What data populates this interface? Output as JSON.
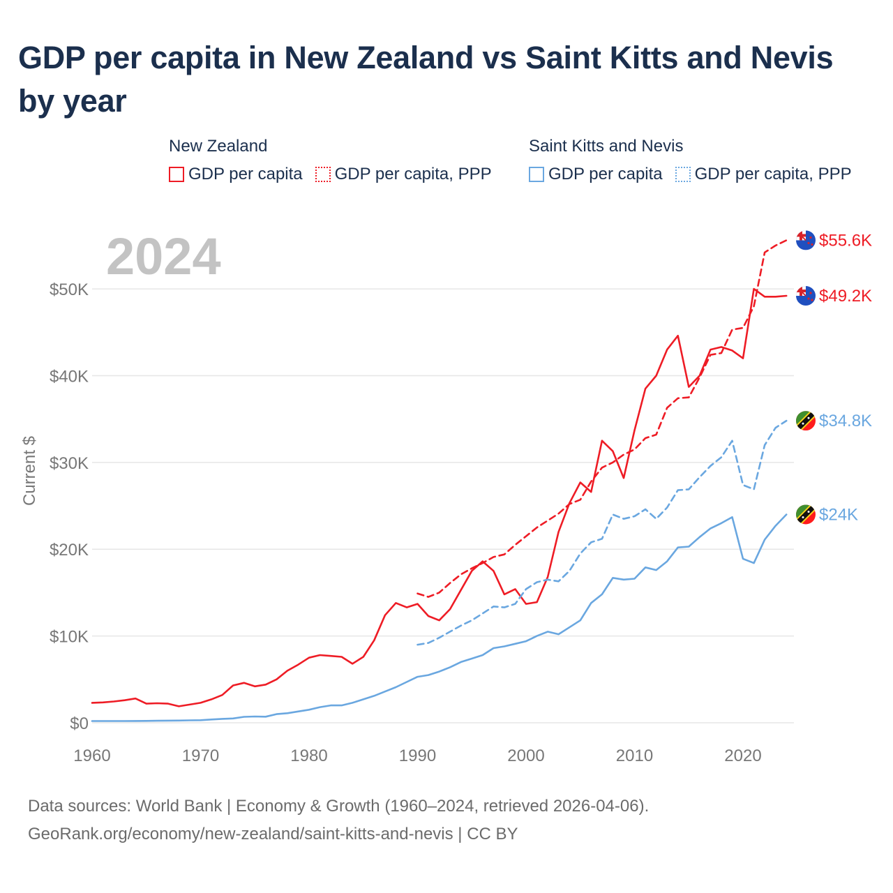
{
  "title": "GDP per capita in New Zealand vs Saint Kitts and Nevis by year",
  "legend": {
    "groups": [
      {
        "name": "New Zealand",
        "color": "#ee1c25",
        "items": [
          {
            "label": "GDP per capita",
            "style": "solid"
          },
          {
            "label": "GDP per capita, PPP",
            "style": "dotted"
          }
        ]
      },
      {
        "name": "Saint Kitts and Nevis",
        "color": "#6aa7e0",
        "items": [
          {
            "label": "GDP per capita",
            "style": "solid"
          },
          {
            "label": "GDP per capita, PPP",
            "style": "dotted"
          }
        ]
      }
    ]
  },
  "footer": {
    "line1": "Data sources: World Bank | Economy & Growth (1960–2024, retrieved 2026-04-06).",
    "line2": "GeoRank.org/economy/new-zealand/saint-kitts-and-nevis | CC BY"
  },
  "chart_data": {
    "type": "line",
    "title": "GDP per capita in New Zealand vs Saint Kitts and Nevis by year",
    "year_label": "2024",
    "xlabel": "",
    "ylabel": "Current $",
    "xlim": [
      1960,
      2024.5
    ],
    "ylim": [
      0,
      57000
    ],
    "x_ticks": [
      1960,
      1970,
      1980,
      1990,
      2000,
      2010,
      2020
    ],
    "y_ticks": [
      0,
      10000,
      20000,
      30000,
      40000,
      50000
    ],
    "y_tick_labels": [
      "$0",
      "$10K",
      "$20K",
      "$30K",
      "$40K",
      "$50K"
    ],
    "grid": true,
    "series": [
      {
        "name": "New Zealand GDP per capita",
        "country": "New Zealand",
        "color": "#ee1c25",
        "dash": "solid",
        "end_label": "$49.2K",
        "flag": "new-zealand",
        "x": [
          1960,
          1961,
          1962,
          1963,
          1964,
          1965,
          1966,
          1967,
          1968,
          1969,
          1970,
          1971,
          1972,
          1973,
          1974,
          1975,
          1976,
          1977,
          1978,
          1979,
          1980,
          1981,
          1982,
          1983,
          1984,
          1985,
          1986,
          1987,
          1988,
          1989,
          1990,
          1991,
          1992,
          1993,
          1994,
          1995,
          1996,
          1997,
          1998,
          1999,
          2000,
          2001,
          2002,
          2003,
          2004,
          2005,
          2006,
          2007,
          2008,
          2009,
          2010,
          2011,
          2012,
          2013,
          2014,
          2015,
          2016,
          2017,
          2018,
          2019,
          2020,
          2021,
          2022,
          2023,
          2024
        ],
        "values": [
          2300,
          2350,
          2450,
          2600,
          2800,
          2200,
          2250,
          2200,
          1900,
          2100,
          2300,
          2700,
          3200,
          4300,
          4600,
          4200,
          4400,
          5000,
          6000,
          6700,
          7500,
          7800,
          7700,
          7600,
          6800,
          7600,
          9500,
          12400,
          13800,
          13300,
          13700,
          12300,
          11800,
          13100,
          15300,
          17500,
          18600,
          17500,
          14800,
          15400,
          13700,
          13900,
          16800,
          22000,
          25300,
          27700,
          26600,
          32500,
          31300,
          28200,
          33700,
          38500,
          40000,
          43000,
          44600,
          38700,
          40000,
          43000,
          43300,
          42900,
          42000,
          50000,
          49100,
          49100,
          49200
        ]
      },
      {
        "name": "New Zealand GDP per capita, PPP",
        "country": "New Zealand",
        "color": "#ee1c25",
        "dash": "dashed",
        "end_label": "$55.6K",
        "flag": "new-zealand",
        "x": [
          1990,
          1991,
          1992,
          1993,
          1994,
          1995,
          1996,
          1997,
          1998,
          1999,
          2000,
          2001,
          2002,
          2003,
          2004,
          2005,
          2006,
          2007,
          2008,
          2009,
          2010,
          2011,
          2012,
          2013,
          2014,
          2015,
          2016,
          2017,
          2018,
          2019,
          2020,
          2021,
          2022,
          2023,
          2024
        ],
        "values": [
          14900,
          14500,
          15000,
          16100,
          17100,
          17800,
          18400,
          19100,
          19400,
          20500,
          21500,
          22500,
          23300,
          24100,
          25200,
          25700,
          27800,
          29400,
          30000,
          30900,
          31500,
          32800,
          33200,
          36300,
          37400,
          37500,
          39800,
          42400,
          42600,
          45300,
          45500,
          48000,
          54200,
          55000,
          55600
        ]
      },
      {
        "name": "Saint Kitts and Nevis GDP per capita",
        "country": "Saint Kitts and Nevis",
        "color": "#6aa7e0",
        "dash": "solid",
        "end_label": "$24K",
        "flag": "saint-kitts-and-nevis",
        "x": [
          1960,
          1961,
          1962,
          1963,
          1964,
          1965,
          1966,
          1967,
          1968,
          1969,
          1970,
          1971,
          1972,
          1973,
          1974,
          1975,
          1976,
          1977,
          1978,
          1979,
          1980,
          1981,
          1982,
          1983,
          1984,
          1985,
          1986,
          1987,
          1988,
          1989,
          1990,
          1991,
          1992,
          1993,
          1994,
          1995,
          1996,
          1997,
          1998,
          1999,
          2000,
          2001,
          2002,
          2003,
          2004,
          2005,
          2006,
          2007,
          2008,
          2009,
          2010,
          2011,
          2012,
          2013,
          2014,
          2015,
          2016,
          2017,
          2018,
          2019,
          2020,
          2021,
          2022,
          2023,
          2024
        ],
        "values": [
          200,
          200,
          200,
          200,
          210,
          220,
          230,
          250,
          260,
          280,
          300,
          380,
          450,
          500,
          680,
          720,
          700,
          1000,
          1100,
          1300,
          1500,
          1800,
          2000,
          2000,
          2300,
          2700,
          3100,
          3600,
          4100,
          4700,
          5300,
          5500,
          5900,
          6400,
          7000,
          7400,
          7800,
          8600,
          8800,
          9100,
          9400,
          10000,
          10500,
          10200,
          11000,
          11800,
          13800,
          14800,
          16700,
          16500,
          16600,
          17900,
          17600,
          18600,
          20200,
          20300,
          21400,
          22400,
          23000,
          23700,
          18900,
          18400,
          21100,
          22700,
          24000
        ]
      },
      {
        "name": "Saint Kitts and Nevis GDP per capita, PPP",
        "country": "Saint Kitts and Nevis",
        "color": "#6aa7e0",
        "dash": "dashed",
        "end_label": "$34.8K",
        "flag": "saint-kitts-and-nevis",
        "x": [
          1990,
          1991,
          1992,
          1993,
          1994,
          1995,
          1996,
          1997,
          1998,
          1999,
          2000,
          2001,
          2002,
          2003,
          2004,
          2005,
          2006,
          2007,
          2008,
          2009,
          2010,
          2011,
          2012,
          2013,
          2014,
          2015,
          2016,
          2017,
          2018,
          2019,
          2020,
          2021,
          2022,
          2023,
          2024
        ],
        "values": [
          9000,
          9200,
          9800,
          10500,
          11200,
          11800,
          12600,
          13400,
          13300,
          13700,
          15400,
          16200,
          16500,
          16300,
          17500,
          19500,
          20800,
          21200,
          24000,
          23500,
          23800,
          24600,
          23500,
          24800,
          26800,
          26900,
          28300,
          29600,
          30600,
          32500,
          27400,
          26900,
          32000,
          34000,
          34800
        ]
      }
    ]
  }
}
